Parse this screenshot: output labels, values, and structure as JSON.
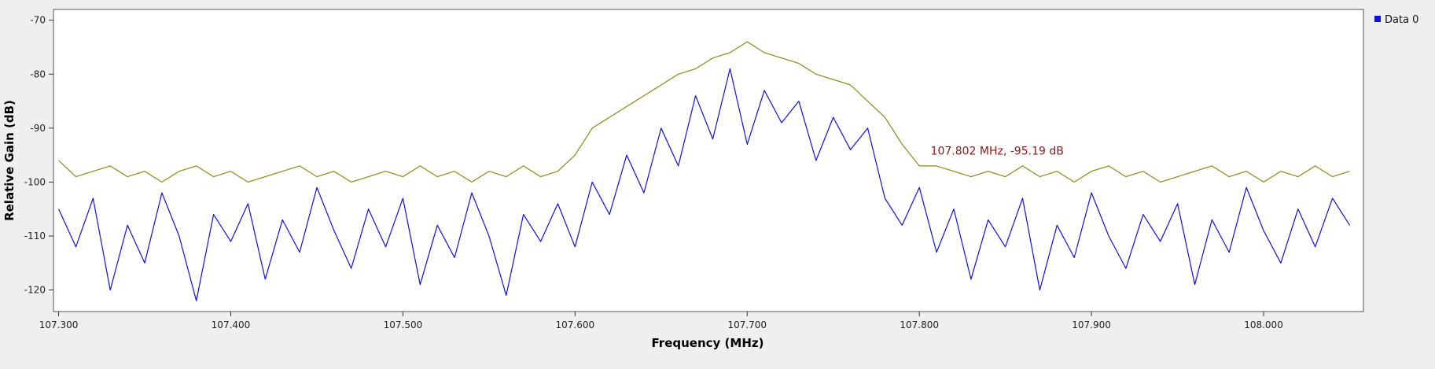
{
  "colors": {
    "background": "#efefef",
    "plot_background": "#ffffff",
    "data0": "#1010e0",
    "maxhold": "#8a8a16",
    "marker": "#8b1a1a"
  },
  "chart_data": {
    "type": "line",
    "title": "",
    "xlabel": "Frequency (MHz)",
    "ylabel": "Relative Gain (dB)",
    "xlim": [
      107.297,
      108.058
    ],
    "ylim": [
      -124,
      -68
    ],
    "x_ticks": [
      107.3,
      107.4,
      107.5,
      107.6,
      107.7,
      107.8,
      107.9,
      108.0
    ],
    "x_tick_labels": [
      "107.300",
      "107.400",
      "107.500",
      "107.600",
      "107.700",
      "107.800",
      "107.900",
      "108.000"
    ],
    "y_ticks": [
      -70,
      -80,
      -90,
      -100,
      -110,
      -120
    ],
    "y_tick_labels": [
      "-70",
      "-80",
      "-90",
      "-100",
      "-110",
      "-120"
    ],
    "grid": false,
    "legend": {
      "placement": "top-right",
      "entries": [
        "Data 0"
      ]
    },
    "marker_annotation": {
      "x": 107.802,
      "y": -95.19,
      "text": "107.802 MHz, -95.19 dB"
    },
    "series": [
      {
        "name": "Data 0",
        "color": "#1010e0",
        "x": [
          107.3,
          107.31,
          107.32,
          107.33,
          107.34,
          107.35,
          107.36,
          107.37,
          107.38,
          107.39,
          107.4,
          107.41,
          107.42,
          107.43,
          107.44,
          107.45,
          107.46,
          107.47,
          107.48,
          107.49,
          107.5,
          107.51,
          107.52,
          107.53,
          107.54,
          107.55,
          107.56,
          107.57,
          107.58,
          107.59,
          107.6,
          107.61,
          107.62,
          107.63,
          107.64,
          107.65,
          107.66,
          107.67,
          107.68,
          107.69,
          107.7,
          107.71,
          107.72,
          107.73,
          107.74,
          107.75,
          107.76,
          107.77,
          107.78,
          107.79,
          107.8,
          107.81,
          107.82,
          107.83,
          107.84,
          107.85,
          107.86,
          107.87,
          107.88,
          107.89,
          107.9,
          107.91,
          107.92,
          107.93,
          107.94,
          107.95,
          107.96,
          107.97,
          107.98,
          107.99,
          108.0,
          108.01,
          108.02,
          108.03,
          108.04,
          108.05
        ],
        "values": [
          -105,
          -112,
          -103,
          -120,
          -108,
          -115,
          -102,
          -110,
          -122,
          -106,
          -111,
          -104,
          -118,
          -107,
          -113,
          -101,
          -109,
          -116,
          -105,
          -112,
          -103,
          -119,
          -108,
          -114,
          -102,
          -110,
          -121,
          -106,
          -111,
          -104,
          -112,
          -100,
          -106,
          -95,
          -102,
          -90,
          -97,
          -84,
          -92,
          -79,
          -93,
          -83,
          -89,
          -85,
          -96,
          -88,
          -94,
          -90,
          -103,
          -108,
          -101,
          -113,
          -105,
          -118,
          -107,
          -112,
          -103,
          -120,
          -108,
          -114,
          -102,
          -110,
          -116,
          -106,
          -111,
          -104,
          -119,
          -107,
          -113,
          -101,
          -109,
          -115,
          -105,
          -112,
          -103,
          -108
        ]
      },
      {
        "name": "",
        "color": "#8a8a16",
        "x": [
          107.3,
          107.31,
          107.32,
          107.33,
          107.34,
          107.35,
          107.36,
          107.37,
          107.38,
          107.39,
          107.4,
          107.41,
          107.42,
          107.43,
          107.44,
          107.45,
          107.46,
          107.47,
          107.48,
          107.49,
          107.5,
          107.51,
          107.52,
          107.53,
          107.54,
          107.55,
          107.56,
          107.57,
          107.58,
          107.59,
          107.6,
          107.61,
          107.62,
          107.63,
          107.64,
          107.65,
          107.66,
          107.67,
          107.68,
          107.69,
          107.7,
          107.71,
          107.72,
          107.73,
          107.74,
          107.75,
          107.76,
          107.77,
          107.78,
          107.79,
          107.8,
          107.81,
          107.82,
          107.83,
          107.84,
          107.85,
          107.86,
          107.87,
          107.88,
          107.89,
          107.9,
          107.91,
          107.92,
          107.93,
          107.94,
          107.95,
          107.96,
          107.97,
          107.98,
          107.99,
          108.0,
          108.01,
          108.02,
          108.03,
          108.04,
          108.05
        ],
        "values": [
          -96,
          -99,
          -98,
          -97,
          -99,
          -98,
          -100,
          -98,
          -97,
          -99,
          -98,
          -100,
          -99,
          -98,
          -97,
          -99,
          -98,
          -100,
          -99,
          -98,
          -99,
          -97,
          -99,
          -98,
          -100,
          -98,
          -99,
          -97,
          -99,
          -98,
          -95,
          -90,
          -88,
          -86,
          -84,
          -82,
          -80,
          -79,
          -77,
          -76,
          -74,
          -76,
          -77,
          -78,
          -80,
          -81,
          -82,
          -85,
          -88,
          -93,
          -97,
          -97,
          -98,
          -99,
          -98,
          -99,
          -97,
          -99,
          -98,
          -100,
          -98,
          -97,
          -99,
          -98,
          -100,
          -99,
          -98,
          -97,
          -99,
          -98,
          -100,
          -98,
          -99,
          -97,
          -99,
          -98
        ]
      }
    ]
  }
}
